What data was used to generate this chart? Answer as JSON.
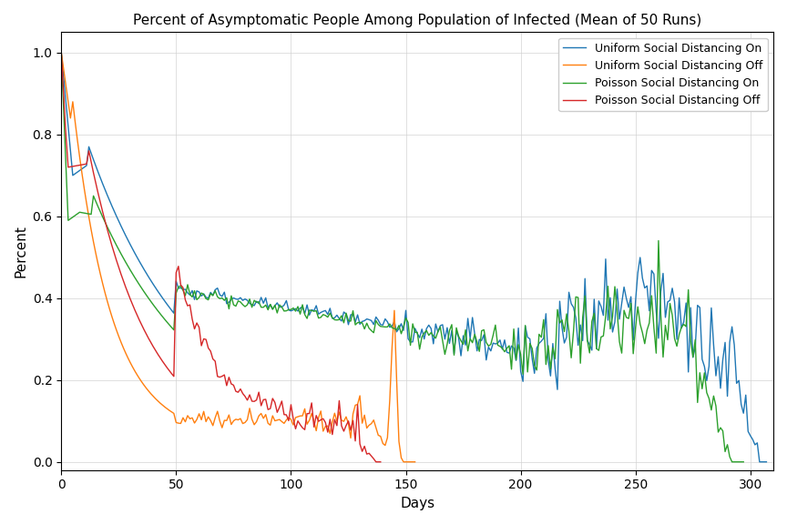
{
  "title": "Percent of Asymptomatic People Among Population of Infected (Mean of 50 Runs)",
  "xlabel": "Days",
  "ylabel": "Percent",
  "xlim": [
    0,
    310
  ],
  "ylim": [
    -0.02,
    1.05
  ],
  "legend_labels": [
    "Uniform Social Distancing On",
    "Uniform Social Distancing Off",
    "Poisson Social Distancing On",
    "Poisson Social Distancing Off"
  ],
  "colors": {
    "uniform_on": "#1f77b4",
    "uniform_off": "#ff7f0e",
    "poisson_on": "#2ca02c",
    "poisson_off": "#d62728"
  },
  "grid": true
}
